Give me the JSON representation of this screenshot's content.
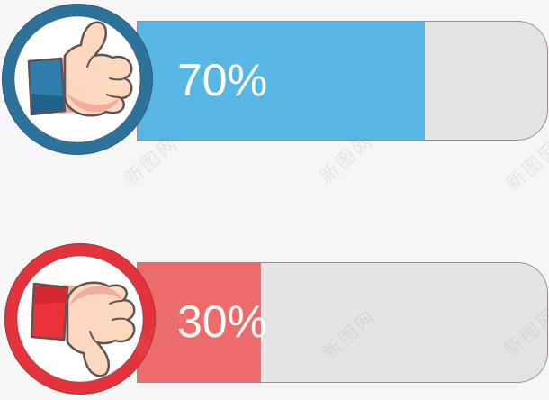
{
  "watermark": {
    "text": "新图网"
  },
  "chart_data": {
    "type": "bar",
    "orientation": "horizontal",
    "categories": [
      "thumbs up",
      "thumbs down"
    ],
    "values": [
      70,
      30
    ],
    "value_labels": [
      "70%",
      "30%"
    ],
    "bar_colors": [
      "#58b6e5",
      "#ed6b6b"
    ],
    "track_color": "#e4e4e3",
    "xlim": [
      0,
      100
    ],
    "legend": "none",
    "grid": "off"
  },
  "bars": [
    {
      "label": "70%",
      "value": 70,
      "icon": "thumbs-up-icon",
      "fill_color": "#58b6e5",
      "ring_color": "#2b739d",
      "cuff_top": "#2e7dac",
      "cuff_dark": "#20618b",
      "skin": "#fcd8bf",
      "skin_shade": "#f2ad9d",
      "outline": "#5f5454",
      "track": "#e4e4e3"
    },
    {
      "label": "30%",
      "value": 30,
      "icon": "thumbs-down-icon",
      "fill_color": "#ed6b6b",
      "ring_color": "#e5333d",
      "cuff_top": "#e9323a",
      "cuff_dark": "#d8262f",
      "skin": "#fcd8bf",
      "skin_shade": "#f2ad9d",
      "outline": "#5f5454",
      "track": "#e4e4e3"
    }
  ]
}
